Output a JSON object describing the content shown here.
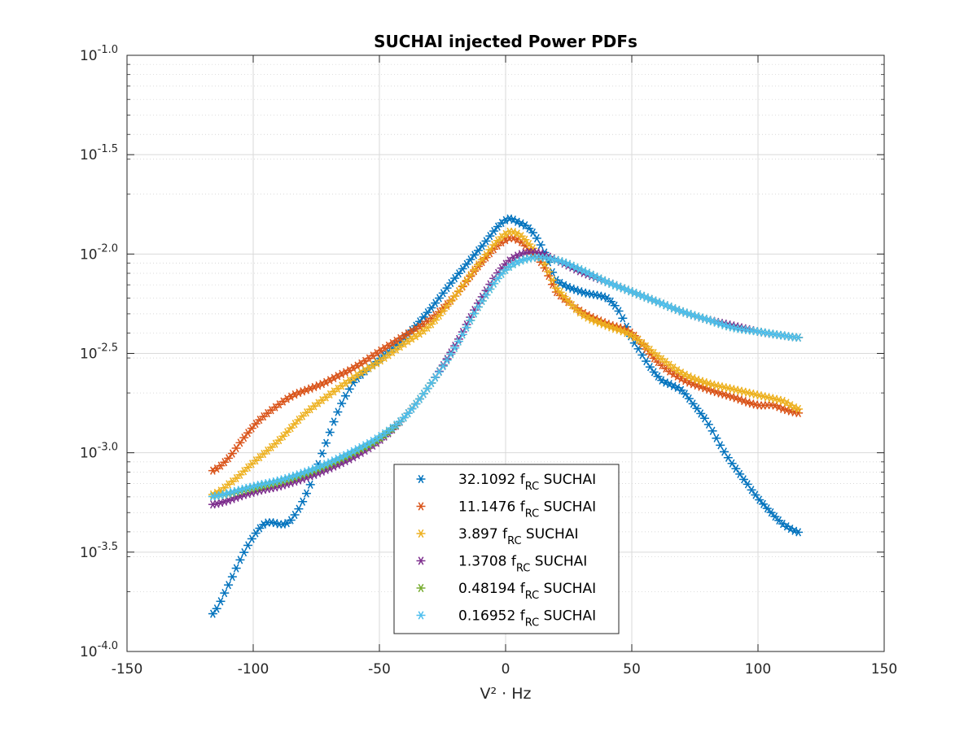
{
  "chart_data": {
    "type": "scatter",
    "title": "SUCHAI injected Power PDFs",
    "xlabel": "V² · Hz",
    "ylabel": "",
    "xlim": [
      -150,
      150
    ],
    "ylim": [
      -4.0,
      -1.0
    ],
    "y_scale": "log10",
    "x_ticks": [
      -150,
      -100,
      -50,
      0,
      50,
      100,
      150
    ],
    "x_tick_labels": [
      "-150",
      "-100",
      "-50",
      "0",
      "50",
      "100",
      "150"
    ],
    "y_tick_exponents": [
      "-1.0",
      "-1.5",
      "-2.0",
      "-2.5",
      "-3.0",
      "-3.5",
      "-4.0"
    ],
    "y_tick_base": "10",
    "grid": "on (major and minor)",
    "marker": "asterisk",
    "legend_location": "bottom-center",
    "series": [
      {
        "name": "32.1092 f_RC SUCHAI",
        "legend_num": "32.1092",
        "color": "#0072BD",
        "x": [
          -116,
          -110,
          -104,
          -98,
          -94,
          -88,
          -84,
          -78,
          -72,
          -66,
          -60,
          -50,
          -40,
          -30,
          -20,
          -10,
          0,
          5,
          10,
          15,
          20,
          30,
          40,
          45,
          50,
          60,
          66,
          70,
          76,
          80,
          86,
          90,
          96,
          100,
          106,
          110,
          116
        ],
        "y": [
          -3.81,
          -3.67,
          -3.51,
          -3.39,
          -3.35,
          -3.36,
          -3.32,
          -3.18,
          -2.98,
          -2.78,
          -2.64,
          -2.53,
          -2.42,
          -2.28,
          -2.12,
          -1.97,
          -1.83,
          -1.84,
          -1.88,
          -1.98,
          -2.13,
          -2.19,
          -2.22,
          -2.29,
          -2.43,
          -2.61,
          -2.66,
          -2.69,
          -2.78,
          -2.85,
          -2.98,
          -3.06,
          -3.16,
          -3.23,
          -3.31,
          -3.36,
          -3.4
        ]
      },
      {
        "name": "11.1476 f_RC SUCHAI",
        "legend_num": "11.1476",
        "color": "#D95319",
        "x": [
          -116,
          -110,
          -104,
          -98,
          -90,
          -84,
          -78,
          -72,
          -66,
          -60,
          -50,
          -40,
          -30,
          -20,
          -10,
          0,
          5,
          10,
          15,
          20,
          30,
          40,
          50,
          60,
          70,
          80,
          90,
          100,
          106,
          110,
          116
        ],
        "y": [
          -3.09,
          -3.03,
          -2.93,
          -2.84,
          -2.76,
          -2.71,
          -2.68,
          -2.65,
          -2.61,
          -2.57,
          -2.49,
          -2.41,
          -2.33,
          -2.21,
          -2.05,
          -1.93,
          -1.93,
          -1.99,
          -2.06,
          -2.19,
          -2.29,
          -2.35,
          -2.4,
          -2.54,
          -2.63,
          -2.68,
          -2.72,
          -2.76,
          -2.76,
          -2.78,
          -2.8
        ]
      },
      {
        "name": "3.897 f_RC SUCHAI",
        "legend_num": "3.897",
        "color": "#EDB120",
        "x": [
          -116,
          -110,
          -100,
          -90,
          -80,
          -70,
          -60,
          -50,
          -40,
          -30,
          -20,
          -10,
          0,
          5,
          10,
          15,
          20,
          30,
          40,
          50,
          60,
          70,
          80,
          90,
          100,
          110,
          116
        ],
        "y": [
          -3.21,
          -3.16,
          -3.05,
          -2.94,
          -2.81,
          -2.71,
          -2.62,
          -2.54,
          -2.45,
          -2.36,
          -2.21,
          -2.04,
          -1.9,
          -1.9,
          -1.96,
          -2.04,
          -2.17,
          -2.3,
          -2.36,
          -2.41,
          -2.51,
          -2.6,
          -2.65,
          -2.68,
          -2.71,
          -2.74,
          -2.78
        ]
      },
      {
        "name": "1.3708 f_RC SUCHAI",
        "legend_num": "1.3708",
        "color": "#7E2F8E",
        "x": [
          -116,
          -100,
          -90,
          -80,
          -70,
          -60,
          -50,
          -40,
          -30,
          -20,
          -10,
          0,
          10,
          20,
          30,
          40,
          50,
          60,
          70,
          80,
          90,
          100,
          110,
          116
        ],
        "y": [
          -3.26,
          -3.2,
          -3.17,
          -3.13,
          -3.08,
          -3.02,
          -2.94,
          -2.82,
          -2.66,
          -2.46,
          -2.23,
          -2.05,
          -1.99,
          -2.03,
          -2.09,
          -2.14,
          -2.19,
          -2.24,
          -2.29,
          -2.33,
          -2.36,
          -2.39,
          -2.41,
          -2.42
        ]
      },
      {
        "name": "0.48194 f_RC SUCHAI",
        "legend_num": "0.48194",
        "color": "#77AC30",
        "x": [
          -116,
          -100,
          -90,
          -80,
          -70,
          -60,
          -50,
          -40,
          -30,
          -20,
          -10,
          0,
          10,
          20,
          30,
          40,
          50,
          60,
          70,
          80,
          90,
          100,
          110,
          116
        ],
        "y": [
          -3.22,
          -3.18,
          -3.15,
          -3.11,
          -3.06,
          -3.0,
          -2.93,
          -2.82,
          -2.66,
          -2.47,
          -2.25,
          -2.08,
          -2.02,
          -2.03,
          -2.08,
          -2.14,
          -2.19,
          -2.24,
          -2.29,
          -2.33,
          -2.37,
          -2.39,
          -2.41,
          -2.42
        ]
      },
      {
        "name": "0.16952 f_RC SUCHAI",
        "legend_num": "0.16952",
        "color": "#4DBEEE",
        "x": [
          -116,
          -100,
          -90,
          -80,
          -70,
          -60,
          -50,
          -40,
          -30,
          -20,
          -10,
          0,
          10,
          20,
          30,
          40,
          50,
          60,
          70,
          80,
          90,
          100,
          110,
          116
        ],
        "y": [
          -3.22,
          -3.17,
          -3.14,
          -3.1,
          -3.05,
          -2.99,
          -2.92,
          -2.82,
          -2.66,
          -2.47,
          -2.25,
          -2.08,
          -2.02,
          -2.03,
          -2.08,
          -2.14,
          -2.19,
          -2.24,
          -2.29,
          -2.33,
          -2.37,
          -2.39,
          -2.41,
          -2.42
        ]
      }
    ]
  }
}
